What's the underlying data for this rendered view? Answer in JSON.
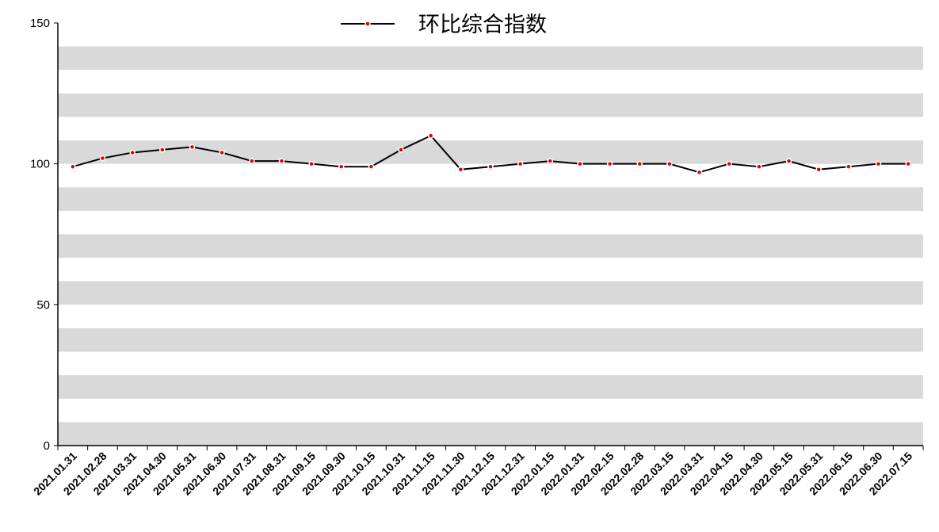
{
  "chart_data": {
    "type": "line",
    "categories": [
      "2021.01.31",
      "2021.02.28",
      "2021.03.31",
      "2021.04.30",
      "2021.05.31",
      "2021.06.30",
      "2021.07.31",
      "2021.08.31",
      "2021.09.15",
      "2021.09.30",
      "2021.10.15",
      "2021.10.31",
      "2021.11.15",
      "2021.11.30",
      "2021.12.15",
      "2021.12.31",
      "2022.01.15",
      "2022.01.31",
      "2022.02.15",
      "2022.02.28",
      "2022.03.15",
      "2022.03.31",
      "2022.04.15",
      "2022.04.30",
      "2022.05.15",
      "2022.05.31",
      "2022.06.15",
      "2022.06.30",
      "2022.07.15"
    ],
    "series": [
      {
        "name": "环比综合指数",
        "color": "#000000",
        "marker_color": "#e00000",
        "values": [
          99,
          102,
          104,
          105,
          106,
          104,
          101,
          101,
          100,
          99,
          99,
          105,
          110,
          98,
          99,
          100,
          101,
          100,
          100,
          100,
          100,
          97,
          100,
          99,
          101,
          98,
          99,
          100,
          100
        ]
      }
    ],
    "ylim": [
      0,
      150
    ],
    "yticks": [
      0,
      50,
      100,
      150
    ],
    "band_color": "#d9d9d9"
  }
}
